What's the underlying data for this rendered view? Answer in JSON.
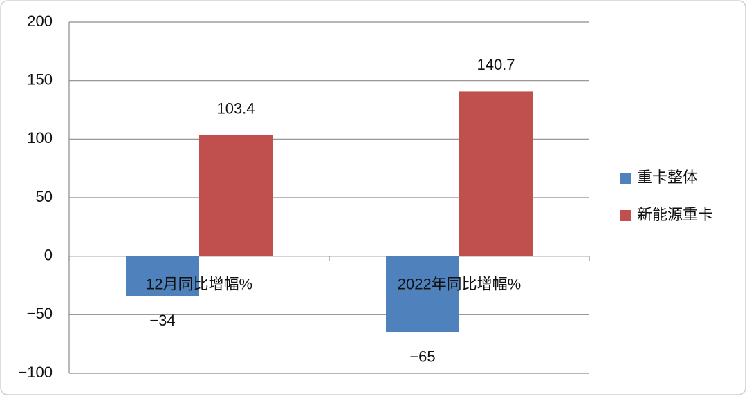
{
  "chart_data": {
    "type": "bar",
    "categories": [
      "12月同比增幅%",
      "2022年同比增幅%"
    ],
    "series": [
      {
        "name": "重卡整体",
        "color": "#4f81bd",
        "values": [
          -34,
          -65
        ],
        "value_labels": [
          "−34",
          "−65"
        ]
      },
      {
        "name": "新能源重卡",
        "color": "#c0504d",
        "values": [
          103.4,
          140.7
        ]
      }
    ],
    "ylim": [
      -100,
      200
    ],
    "yticks": [
      {
        "value": -100,
        "label": "−100"
      },
      {
        "value": -50,
        "label": "−50"
      },
      0,
      50,
      100,
      150,
      200
    ],
    "grid": true,
    "legend": "right"
  }
}
